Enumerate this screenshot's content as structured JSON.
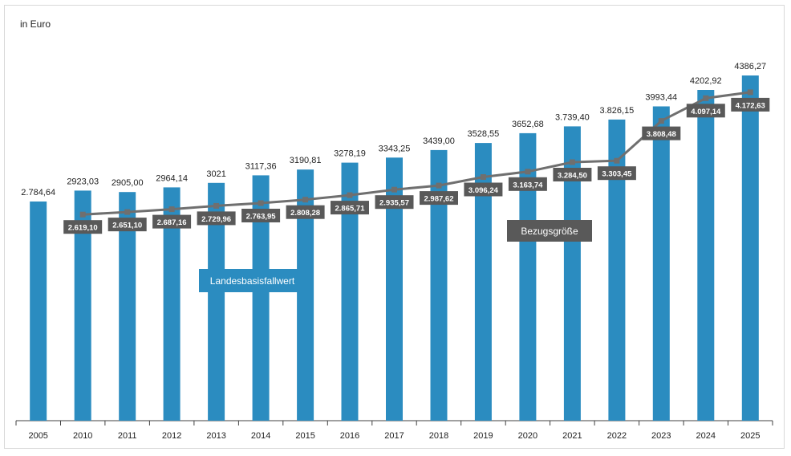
{
  "unit_label": "in Euro",
  "colors": {
    "bar": "#2b8cc0",
    "line": "#6f6f6f",
    "label_box": "#595959",
    "axis": "#404040"
  },
  "chart_data": {
    "type": "bar",
    "categories": [
      "2005",
      "2010",
      "2011",
      "2012",
      "2013",
      "2014",
      "2015",
      "2016",
      "2017",
      "2018",
      "2019",
      "2020",
      "2021",
      "2022",
      "2023",
      "2024",
      "2025"
    ],
    "series": [
      {
        "name": "Landesbasisfallwert",
        "type": "bar",
        "values": [
          2784.64,
          2923.03,
          2905.0,
          2964.14,
          3021,
          3117.36,
          3190.81,
          3278.19,
          3343.25,
          3439.0,
          3528.55,
          3652.68,
          3739.4,
          3826.15,
          3993.44,
          4202.92,
          4386.27
        ],
        "labels": [
          "2.784,64",
          "2923,03",
          "2905,00",
          "2964,14",
          "3021",
          "3117,36",
          "3190,81",
          "3278,19",
          "3343,25",
          "3439,00",
          "3528,55",
          "3652,68",
          "3.739,40",
          "3.826,15",
          "3993,44",
          "4202,92",
          "4386,27"
        ]
      },
      {
        "name": "Bezugsgröße",
        "type": "line",
        "values": [
          null,
          2619.1,
          2651.1,
          2687.16,
          2729.96,
          2763.95,
          2808.28,
          2865.71,
          2935.57,
          2987.62,
          3096.24,
          3163.74,
          3284.5,
          3303.45,
          3808.48,
          4097.14,
          4172.63
        ],
        "labels": [
          null,
          "2.619,10",
          "2.651,10",
          "2.687,16",
          "2.729,96",
          "2.763,95",
          "2.808,28",
          "2.865,71",
          "2.935,57",
          "2.987,62",
          "3.096,24",
          "3.163,74",
          "3.284,50",
          "3.303,45",
          "3.808,48",
          "4.097,14",
          "4.172,63"
        ]
      }
    ],
    "ylim": [
      0,
      4500
    ],
    "grid": false,
    "legend": "inline labels"
  }
}
